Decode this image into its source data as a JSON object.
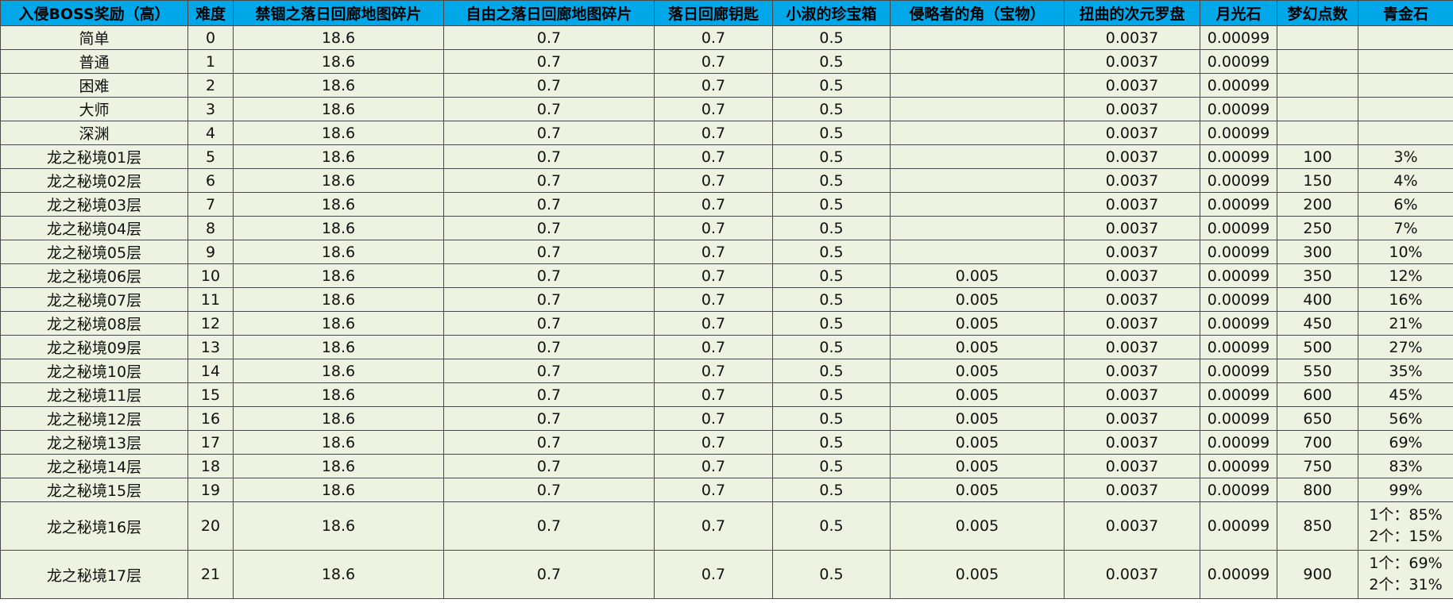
{
  "table": {
    "headers": [
      "入侵BOSS奖励（高）",
      "难度",
      "禁锢之落日回廊地图碎片",
      "自由之落日回廊地图碎片",
      "落日回廊钥匙",
      "小淑的珍宝箱",
      "侵略者的角（宝物）",
      "扭曲的次元罗盘",
      "月光石",
      "梦幻点数",
      "青金石"
    ],
    "rows": [
      {
        "cells": [
          "简单",
          "0",
          "18.6",
          "0.7",
          "0.7",
          "0.5",
          "",
          "0.0037",
          "0.00099",
          "",
          ""
        ]
      },
      {
        "cells": [
          "普通",
          "1",
          "18.6",
          "0.7",
          "0.7",
          "0.5",
          "",
          "0.0037",
          "0.00099",
          "",
          ""
        ]
      },
      {
        "cells": [
          "困难",
          "2",
          "18.6",
          "0.7",
          "0.7",
          "0.5",
          "",
          "0.0037",
          "0.00099",
          "",
          ""
        ]
      },
      {
        "cells": [
          "大师",
          "3",
          "18.6",
          "0.7",
          "0.7",
          "0.5",
          "",
          "0.0037",
          "0.00099",
          "",
          ""
        ]
      },
      {
        "cells": [
          "深渊",
          "4",
          "18.6",
          "0.7",
          "0.7",
          "0.5",
          "",
          "0.0037",
          "0.00099",
          "",
          ""
        ]
      },
      {
        "cells": [
          "龙之秘境01层",
          "5",
          "18.6",
          "0.7",
          "0.7",
          "0.5",
          "",
          "0.0037",
          "0.00099",
          "100",
          "3%"
        ]
      },
      {
        "cells": [
          "龙之秘境02层",
          "6",
          "18.6",
          "0.7",
          "0.7",
          "0.5",
          "",
          "0.0037",
          "0.00099",
          "150",
          "4%"
        ]
      },
      {
        "cells": [
          "龙之秘境03层",
          "7",
          "18.6",
          "0.7",
          "0.7",
          "0.5",
          "",
          "0.0037",
          "0.00099",
          "200",
          "6%"
        ]
      },
      {
        "cells": [
          "龙之秘境04层",
          "8",
          "18.6",
          "0.7",
          "0.7",
          "0.5",
          "",
          "0.0037",
          "0.00099",
          "250",
          "7%"
        ]
      },
      {
        "cells": [
          "龙之秘境05层",
          "9",
          "18.6",
          "0.7",
          "0.7",
          "0.5",
          "",
          "0.0037",
          "0.00099",
          "300",
          "10%"
        ]
      },
      {
        "cells": [
          "龙之秘境06层",
          "10",
          "18.6",
          "0.7",
          "0.7",
          "0.5",
          "0.005",
          "0.0037",
          "0.00099",
          "350",
          "12%"
        ]
      },
      {
        "cells": [
          "龙之秘境07层",
          "11",
          "18.6",
          "0.7",
          "0.7",
          "0.5",
          "0.005",
          "0.0037",
          "0.00099",
          "400",
          "16%"
        ]
      },
      {
        "cells": [
          "龙之秘境08层",
          "12",
          "18.6",
          "0.7",
          "0.7",
          "0.5",
          "0.005",
          "0.0037",
          "0.00099",
          "450",
          "21%"
        ]
      },
      {
        "cells": [
          "龙之秘境09层",
          "13",
          "18.6",
          "0.7",
          "0.7",
          "0.5",
          "0.005",
          "0.0037",
          "0.00099",
          "500",
          "27%"
        ]
      },
      {
        "cells": [
          "龙之秘境10层",
          "14",
          "18.6",
          "0.7",
          "0.7",
          "0.5",
          "0.005",
          "0.0037",
          "0.00099",
          "550",
          "35%"
        ]
      },
      {
        "cells": [
          "龙之秘境11层",
          "15",
          "18.6",
          "0.7",
          "0.7",
          "0.5",
          "0.005",
          "0.0037",
          "0.00099",
          "600",
          "45%"
        ]
      },
      {
        "cells": [
          "龙之秘境12层",
          "16",
          "18.6",
          "0.7",
          "0.7",
          "0.5",
          "0.005",
          "0.0037",
          "0.00099",
          "650",
          "56%"
        ]
      },
      {
        "cells": [
          "龙之秘境13层",
          "17",
          "18.6",
          "0.7",
          "0.7",
          "0.5",
          "0.005",
          "0.0037",
          "0.00099",
          "700",
          "69%"
        ]
      },
      {
        "cells": [
          "龙之秘境14层",
          "18",
          "18.6",
          "0.7",
          "0.7",
          "0.5",
          "0.005",
          "0.0037",
          "0.00099",
          "750",
          "83%"
        ]
      },
      {
        "cells": [
          "龙之秘境15层",
          "19",
          "18.6",
          "0.7",
          "0.7",
          "0.5",
          "0.005",
          "0.0037",
          "0.00099",
          "800",
          "99%"
        ]
      },
      {
        "cells": [
          "龙之秘境16层",
          "20",
          "18.6",
          "0.7",
          "0.7",
          "0.5",
          "0.005",
          "0.0037",
          "0.00099",
          "850",
          [
            "1个：85%",
            "2个：15%"
          ]
        ]
      },
      {
        "cells": [
          "龙之秘境17层",
          "21",
          "18.6",
          "0.7",
          "0.7",
          "0.5",
          "0.005",
          "0.0037",
          "0.00099",
          "900",
          [
            "1个：69%",
            "2个：31%"
          ]
        ]
      }
    ]
  }
}
